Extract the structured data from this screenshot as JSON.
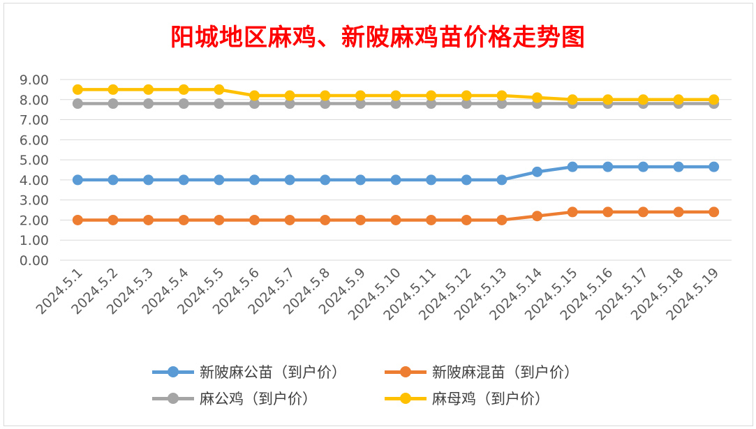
{
  "chart_data": {
    "type": "line",
    "title": "阳城地区麻鸡、新陂麻鸡苗价格走势图",
    "categories": [
      "2024.5.1",
      "2024.5.2",
      "2024.5.3",
      "2024.5.4",
      "2024.5.5",
      "2024.5.6",
      "2024.5.7",
      "2024.5.8",
      "2024.5.9",
      "2024.5.10",
      "2024.5.11",
      "2024.5.12",
      "2024.5.13",
      "2024.5.14",
      "2024.5.15",
      "2024.5.16",
      "2024.5.17",
      "2024.5.18",
      "2024.5.19"
    ],
    "yticks": [
      "0.00",
      "1.00",
      "2.00",
      "3.00",
      "4.00",
      "5.00",
      "6.00",
      "7.00",
      "8.00",
      "9.00"
    ],
    "ylim": [
      0,
      9
    ],
    "grid": true,
    "legend_position": "bottom",
    "series": [
      {
        "name": "新陂麻公苗（到户价）",
        "color": "#5b9bd5",
        "values": [
          4.0,
          4.0,
          4.0,
          4.0,
          4.0,
          4.0,
          4.0,
          4.0,
          4.0,
          4.0,
          4.0,
          4.0,
          4.0,
          4.4,
          4.65,
          4.65,
          4.65,
          4.65,
          4.65
        ]
      },
      {
        "name": "新陂麻混苗（到户价）",
        "color": "#ed7d31",
        "values": [
          2.0,
          2.0,
          2.0,
          2.0,
          2.0,
          2.0,
          2.0,
          2.0,
          2.0,
          2.0,
          2.0,
          2.0,
          2.0,
          2.2,
          2.4,
          2.4,
          2.4,
          2.4,
          2.4
        ]
      },
      {
        "name": "麻公鸡（到户价）",
        "color": "#a5a5a5",
        "values": [
          7.8,
          7.8,
          7.8,
          7.8,
          7.8,
          7.8,
          7.8,
          7.8,
          7.8,
          7.8,
          7.8,
          7.8,
          7.8,
          7.8,
          7.8,
          7.8,
          7.8,
          7.8,
          7.8
        ]
      },
      {
        "name": "麻母鸡（到户价）",
        "color": "#ffc000",
        "values": [
          8.5,
          8.5,
          8.5,
          8.5,
          8.5,
          8.2,
          8.2,
          8.2,
          8.2,
          8.2,
          8.2,
          8.2,
          8.2,
          8.1,
          8.0,
          8.0,
          8.0,
          8.0,
          8.0
        ]
      }
    ]
  }
}
